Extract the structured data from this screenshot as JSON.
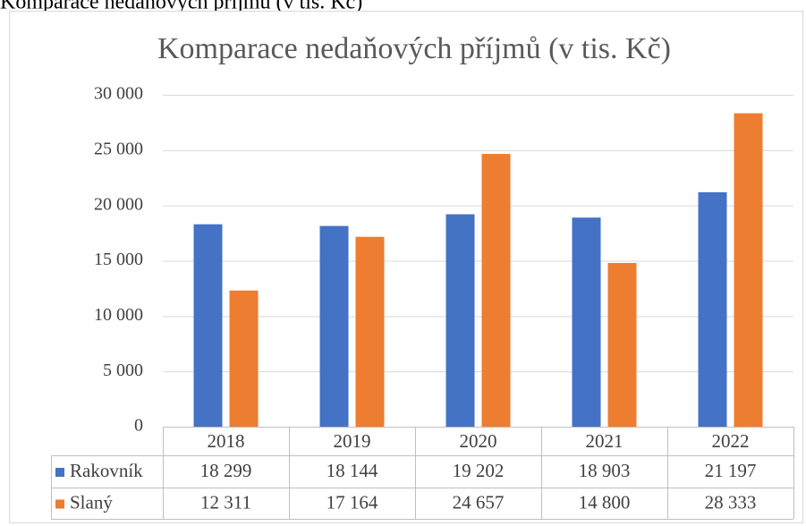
{
  "caption": "Komparace nedaňových příjmů (v tis. Kč)",
  "chart_data": {
    "type": "bar",
    "title": "Komparace nedaňových příjmů (v tis. Kč)",
    "categories": [
      "2018",
      "2019",
      "2020",
      "2021",
      "2022"
    ],
    "series": [
      {
        "name": "Rakovník",
        "color": "#4472c4",
        "values": [
          18299,
          18144,
          19202,
          18903,
          21197
        ],
        "value_labels": [
          "18 299",
          "18 144",
          "19 202",
          "18 903",
          "21 197"
        ]
      },
      {
        "name": "Slaný",
        "color": "#ed7d31",
        "values": [
          12311,
          17164,
          24657,
          14800,
          28333
        ],
        "value_labels": [
          "12 311",
          "17 164",
          "24 657",
          "14 800",
          "28 333"
        ]
      }
    ],
    "ylim": [
      0,
      30000
    ],
    "yticks": [
      0,
      {
        "value": 5000,
        "label": "5 000"
      },
      {
        "value": 10000,
        "label": "10 000"
      },
      {
        "value": 15000,
        "label": "15 000"
      },
      {
        "value": 20000,
        "label": "20 000"
      },
      {
        "value": 25000,
        "label": "25 000"
      },
      {
        "value": 30000,
        "label": "30 000"
      }
    ],
    "grid": true,
    "data_table": true
  }
}
